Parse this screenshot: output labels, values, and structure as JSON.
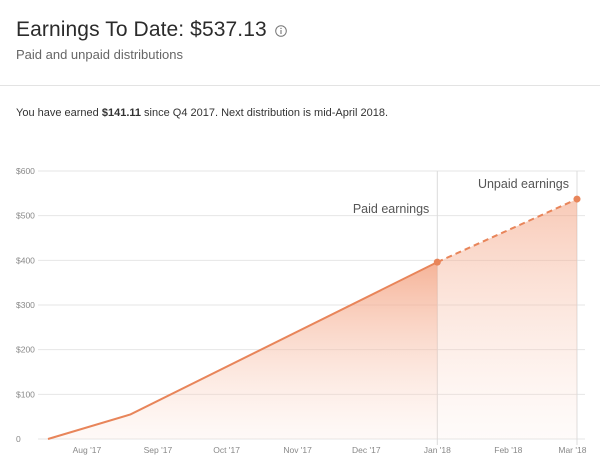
{
  "header": {
    "title": "Earnings To Date: $537.13",
    "subtitle": "Paid and unpaid distributions",
    "info_icon": "info-icon"
  },
  "summary": {
    "prefix": "You have earned ",
    "amount": "$141.11",
    "suffix": " since Q4 2017. Next distribution is mid-April 2018."
  },
  "colors": {
    "line": "#e8855a",
    "fill": "#f4a07e",
    "grid": "#e6e6e6"
  },
  "chart_data": {
    "type": "area",
    "title": "",
    "xlabel": "",
    "ylabel": "",
    "ylim": [
      0,
      600
    ],
    "y_ticks": [
      "0",
      "$100",
      "$200",
      "$300",
      "$400",
      "$500",
      "$600"
    ],
    "y_tick_values": [
      0,
      100,
      200,
      300,
      400,
      500,
      600
    ],
    "x_ticks": [
      "Aug '17",
      "Sep '17",
      "Oct '17",
      "Nov '17",
      "Dec '17",
      "Jan '18",
      "Feb '18",
      "Mar '18"
    ],
    "x_range": [
      "2017-07-15",
      "2018-03-03"
    ],
    "x_tick_dates": [
      "2017-08-01",
      "2017-09-01",
      "2017-10-01",
      "2017-11-01",
      "2017-12-01",
      "2018-01-01",
      "2018-02-01",
      "2018-03-01"
    ],
    "grid": true,
    "series": [
      {
        "name": "Paid earnings",
        "style": "solid",
        "x": [
          "2017-07-15",
          "2017-08-20",
          "2018-01-01"
        ],
        "values": [
          0,
          55,
          396
        ]
      },
      {
        "name": "Unpaid earnings",
        "style": "dashed",
        "x": [
          "2018-01-01",
          "2018-03-03"
        ],
        "values": [
          396,
          537.13
        ]
      }
    ]
  }
}
